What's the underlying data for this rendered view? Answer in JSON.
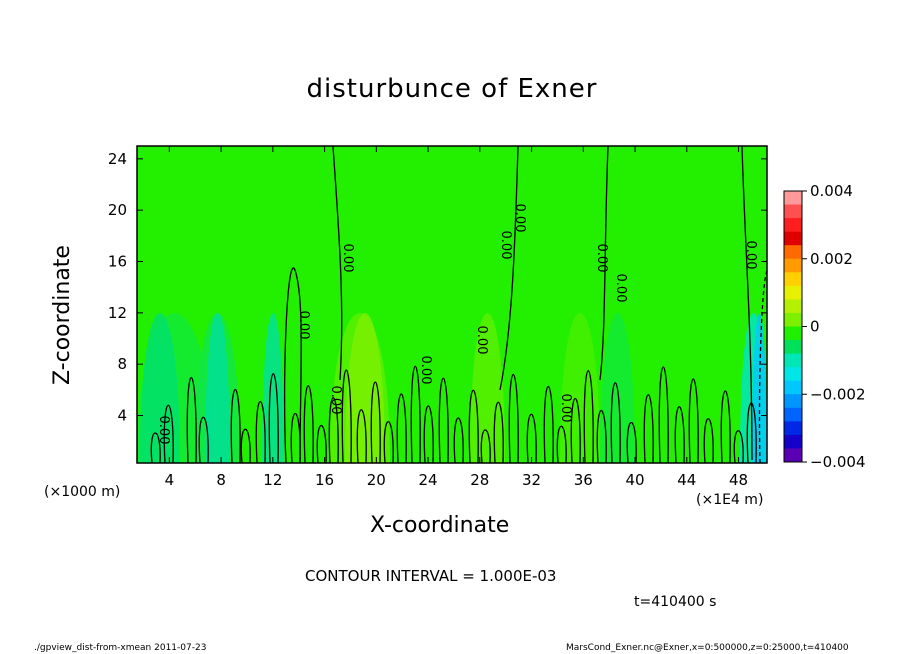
{
  "chart_data": {
    "type": "heatmap",
    "title": "disturbunce of Exner",
    "xlabel": "X-coordinate",
    "ylabel": "Z-coordinate",
    "x_unit_label": "(×1000 m)",
    "x_scale_label": "(×1E4 m)",
    "x_ticks": [
      "4",
      "8",
      "12",
      "16",
      "20",
      "24",
      "28",
      "32",
      "36",
      "40",
      "44",
      "48"
    ],
    "y_ticks": [
      "4",
      "8",
      "12",
      "16",
      "20",
      "24"
    ],
    "xlim": [
      0,
      50
    ],
    "ylim": [
      0,
      25
    ],
    "colorbar": {
      "ticks": [
        "0.004",
        "0.002",
        "0",
        "−0.002",
        "−0.004"
      ],
      "range": [
        -0.004,
        0.004
      ],
      "colors": [
        "#ff9a9a",
        "#ff5050",
        "#ff1e1e",
        "#e00000",
        "#ff6a00",
        "#ff9a00",
        "#ffcf00",
        "#e6f000",
        "#b4f000",
        "#7df000",
        "#1ef000",
        "#00e05a",
        "#00e6b4",
        "#00e6e6",
        "#00c8ff",
        "#0096ff",
        "#0064ff",
        "#0028e6",
        "#1400c8",
        "#5a00b4"
      ]
    },
    "contour_interval": "CONTOUR INTERVAL = 1.000E-03",
    "contour_labels": [
      "0.00",
      "0.00",
      "0.00",
      "0.00",
      "0.00",
      "0.00",
      "0.00",
      "0.00",
      "0.00",
      "0.00",
      "0.00",
      "0.00",
      "0.00",
      "0.00"
    ],
    "time_label": "t=410400 s",
    "footer_left": "./gpview_dist-from-xmean  2011-07-23",
    "footer_right": "MarsCond_Exner.nc@Exner,x=0:500000,z=0:25000,t=410400"
  }
}
